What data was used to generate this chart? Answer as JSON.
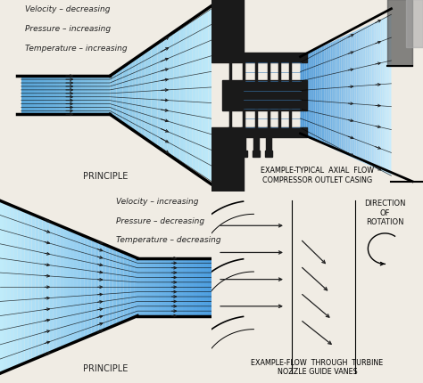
{
  "bg_color": "#f0ece4",
  "panel_labels": {
    "top_left": "PRINCIPLE",
    "top_right": "EXAMPLE-TYPICAL  AXIAL  FLOW\nCOMPRESSOR OUTLET CASING",
    "bottom_left": "PRINCIPLE",
    "bottom_right": "EXAMPLE-FLOW  THROUGH  TURBINE\nNOZZLE GUIDE VANES"
  },
  "top_left_text": [
    "Velocity – decreasing",
    "Pressure – increasing",
    "Temperature – increasing"
  ],
  "bottom_left_text": [
    "Velocity – increasing",
    "Pressure – decreasing",
    "Temperature – decreasing"
  ]
}
